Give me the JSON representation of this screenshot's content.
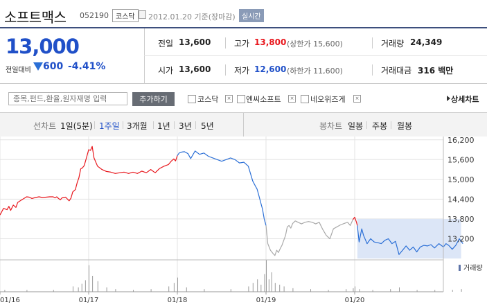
{
  "header": {
    "title": "소프트맥스",
    "code": "052190",
    "market": "코스닥",
    "date": "2012.01.20 기준(장마감)",
    "live": "실시간"
  },
  "price": {
    "current": "13,000",
    "change_label": "전일대비",
    "change": "600",
    "change_pct": "-4.41%",
    "direction": "down"
  },
  "quote": {
    "prev_close_label": "전일",
    "prev_close": "13,600",
    "high_label": "고가",
    "high": "13,800",
    "high_limit": "(상한가 15,600)",
    "volume_label": "거래량",
    "volume": "24,349",
    "open_label": "시가",
    "open": "13,600",
    "low_label": "저가",
    "low": "12,600",
    "low_limit": "(하한가 11,600)",
    "amount_label": "거래대금",
    "amount": "316 백만"
  },
  "compare": {
    "search_placeholder": "종목,펀드,환율,원자재명 입력",
    "add_label": "추가하기",
    "items": [
      "코스닥",
      "엔씨소프트",
      "네오위즈게"
    ],
    "detail_label": "상세차트"
  },
  "tabs": {
    "line_label": "선차트",
    "line_periods": [
      "1일(5분)",
      "1주일",
      "3개월",
      "1년",
      "3년",
      "5년"
    ],
    "active_period": "1주일",
    "candle_label": "봉차트",
    "candle_periods": [
      "일봉",
      "주봉",
      "월봉"
    ]
  },
  "colors": {
    "up": "#e8161c",
    "down": "#2b6fd6",
    "flat": "#a9a9a9",
    "range_fill": "#dce6f7"
  },
  "chart_data": {
    "type": "line",
    "x_ticks": [
      "01/16",
      "01/17",
      "01/18",
      "01/19",
      "01/20"
    ],
    "y_ticks": [
      "16,200",
      "15,600",
      "15,000",
      "14,400",
      "13,800",
      "13,200"
    ],
    "ylim": [
      12600,
      16300
    ],
    "volume_label": "거래량",
    "series": [
      {
        "segment": "up",
        "values": [
          [
            0.0,
            13920
          ],
          [
            0.04,
            14120
          ],
          [
            0.08,
            14080
          ],
          [
            0.1,
            14180
          ],
          [
            0.12,
            14060
          ],
          [
            0.15,
            14220
          ],
          [
            0.18,
            14150
          ],
          [
            0.2,
            14300
          ],
          [
            0.24,
            14370
          ],
          [
            0.27,
            14420
          ],
          [
            0.3,
            14470
          ],
          [
            0.33,
            14460
          ],
          [
            0.36,
            14420
          ],
          [
            0.4,
            14450
          ],
          [
            0.44,
            14470
          ],
          [
            0.48,
            14450
          ],
          [
            0.52,
            14460
          ],
          [
            0.56,
            14470
          ],
          [
            0.6,
            14470
          ],
          [
            0.62,
            14440
          ],
          [
            0.64,
            14470
          ],
          [
            0.66,
            14420
          ],
          [
            0.68,
            14380
          ],
          [
            0.7,
            14440
          ],
          [
            0.74,
            14460
          ],
          [
            0.78,
            14350
          ],
          [
            0.8,
            14430
          ],
          [
            0.82,
            14620
          ],
          [
            0.85,
            14690
          ],
          [
            0.87,
            14900
          ],
          [
            0.89,
            15050
          ],
          [
            0.91,
            15320
          ],
          [
            0.93,
            15350
          ],
          [
            0.95,
            15420
          ],
          [
            0.98,
            15700
          ],
          [
            1.0,
            15900
          ],
          [
            1.02,
            15880
          ],
          [
            1.04,
            16000
          ],
          [
            1.06,
            15650
          ],
          [
            1.1,
            15400
          ],
          [
            1.15,
            15300
          ],
          [
            1.2,
            15240
          ],
          [
            1.25,
            15220
          ],
          [
            1.3,
            15180
          ],
          [
            1.35,
            15200
          ],
          [
            1.4,
            15220
          ],
          [
            1.45,
            15180
          ],
          [
            1.5,
            15220
          ],
          [
            1.55,
            15180
          ],
          [
            1.6,
            15250
          ],
          [
            1.65,
            15200
          ],
          [
            1.7,
            15300
          ],
          [
            1.75,
            15200
          ],
          [
            1.8,
            15330
          ],
          [
            1.85,
            15400
          ],
          [
            1.9,
            15450
          ],
          [
            1.93,
            15550
          ],
          [
            1.96,
            15620
          ],
          [
            1.98,
            15560
          ],
          [
            2.0,
            15720
          ]
        ]
      },
      {
        "segment": "down",
        "values": [
          [
            2.0,
            15720
          ],
          [
            2.02,
            15800
          ],
          [
            2.05,
            15830
          ],
          [
            2.08,
            15840
          ],
          [
            2.12,
            15780
          ],
          [
            2.15,
            15630
          ],
          [
            2.2,
            15860
          ],
          [
            2.25,
            15760
          ],
          [
            2.3,
            15800
          ],
          [
            2.35,
            15700
          ],
          [
            2.4,
            15650
          ],
          [
            2.45,
            15600
          ],
          [
            2.5,
            15550
          ],
          [
            2.55,
            15600
          ],
          [
            2.6,
            15650
          ],
          [
            2.65,
            15600
          ],
          [
            2.7,
            15500
          ],
          [
            2.75,
            15520
          ],
          [
            2.8,
            15400
          ],
          [
            2.85,
            14950
          ],
          [
            2.88,
            14800
          ],
          [
            2.9,
            14700
          ],
          [
            2.92,
            14500
          ],
          [
            2.94,
            14300
          ],
          [
            2.96,
            14100
          ],
          [
            2.98,
            13800
          ],
          [
            3.0,
            13600
          ]
        ]
      },
      {
        "segment": "flat",
        "values": [
          [
            3.0,
            13600
          ],
          [
            3.02,
            13050
          ],
          [
            3.05,
            12850
          ],
          [
            3.08,
            12750
          ],
          [
            3.1,
            12690
          ],
          [
            3.12,
            12850
          ],
          [
            3.14,
            12780
          ],
          [
            3.16,
            12900
          ],
          [
            3.18,
            13000
          ],
          [
            3.2,
            13150
          ],
          [
            3.22,
            13300
          ],
          [
            3.24,
            13560
          ],
          [
            3.26,
            13600
          ],
          [
            3.28,
            13520
          ],
          [
            3.3,
            13660
          ],
          [
            3.33,
            13740
          ],
          [
            3.36,
            13700
          ],
          [
            3.4,
            13650
          ],
          [
            3.44,
            13700
          ],
          [
            3.48,
            13720
          ],
          [
            3.52,
            13700
          ],
          [
            3.56,
            13650
          ],
          [
            3.6,
            13700
          ],
          [
            3.64,
            13480
          ],
          [
            3.68,
            13300
          ],
          [
            3.72,
            13200
          ],
          [
            3.76,
            13500
          ],
          [
            3.8,
            13560
          ],
          [
            3.84,
            13620
          ],
          [
            3.88,
            13660
          ],
          [
            3.92,
            13700
          ],
          [
            3.95,
            13600
          ],
          [
            3.98,
            13780
          ]
        ]
      },
      {
        "segment": "up",
        "values": [
          [
            3.98,
            13780
          ],
          [
            4.0,
            13850
          ],
          [
            4.02,
            13700
          ],
          [
            4.03,
            13600
          ]
        ]
      },
      {
        "segment": "down",
        "values": [
          [
            4.03,
            13600
          ],
          [
            4.05,
            13100
          ],
          [
            4.08,
            13500
          ],
          [
            4.1,
            13300
          ],
          [
            4.14,
            13050
          ],
          [
            4.18,
            13200
          ],
          [
            4.22,
            13100
          ],
          [
            4.26,
            13080
          ],
          [
            4.3,
            13050
          ],
          [
            4.34,
            13150
          ],
          [
            4.38,
            13200
          ],
          [
            4.42,
            13050
          ],
          [
            4.46,
            13120
          ],
          [
            4.5,
            12720
          ],
          [
            4.54,
            12850
          ],
          [
            4.58,
            12980
          ],
          [
            4.62,
            12850
          ],
          [
            4.66,
            12950
          ],
          [
            4.7,
            12800
          ],
          [
            4.74,
            12950
          ],
          [
            4.78,
            13000
          ],
          [
            4.82,
            12980
          ],
          [
            4.86,
            13020
          ],
          [
            4.9,
            12920
          ],
          [
            4.95,
            13050
          ],
          [
            5.0,
            12950
          ],
          [
            5.03,
            13050
          ],
          [
            5.06,
            13000
          ],
          [
            5.1,
            12880
          ],
          [
            5.14,
            13000
          ],
          [
            5.18,
            13200
          ],
          [
            5.22,
            13050
          ]
        ]
      }
    ],
    "range_highlight": [
      4.03,
      5.2,
      12600,
      13800
    ],
    "volume": [
      [
        0.05,
        2
      ],
      [
        0.3,
        2
      ],
      [
        0.6,
        2
      ],
      [
        0.82,
        6
      ],
      [
        0.88,
        5
      ],
      [
        0.92,
        9
      ],
      [
        0.96,
        13
      ],
      [
        1.0,
        30
      ],
      [
        1.04,
        18
      ],
      [
        1.1,
        12
      ],
      [
        1.2,
        5
      ],
      [
        1.3,
        3
      ],
      [
        1.5,
        2
      ],
      [
        1.7,
        3
      ],
      [
        1.9,
        6
      ],
      [
        1.96,
        10
      ],
      [
        2.0,
        16
      ],
      [
        2.1,
        5
      ],
      [
        2.3,
        3
      ],
      [
        2.6,
        3
      ],
      [
        2.8,
        6
      ],
      [
        2.85,
        10
      ],
      [
        2.9,
        14
      ],
      [
        2.94,
        8
      ],
      [
        2.98,
        20
      ],
      [
        3.0,
        36
      ],
      [
        3.03,
        14
      ],
      [
        3.06,
        22
      ],
      [
        3.1,
        10
      ],
      [
        3.15,
        8
      ],
      [
        3.2,
        6
      ],
      [
        3.3,
        4
      ],
      [
        3.5,
        3
      ],
      [
        3.7,
        2
      ],
      [
        3.9,
        3
      ],
      [
        3.98,
        4
      ],
      [
        4.0,
        6
      ],
      [
        4.05,
        3
      ],
      [
        4.2,
        2
      ],
      [
        4.4,
        3
      ],
      [
        4.5,
        5
      ],
      [
        4.7,
        2
      ],
      [
        4.9,
        2
      ],
      [
        5.1,
        2
      ],
      [
        5.2,
        3
      ]
    ]
  }
}
